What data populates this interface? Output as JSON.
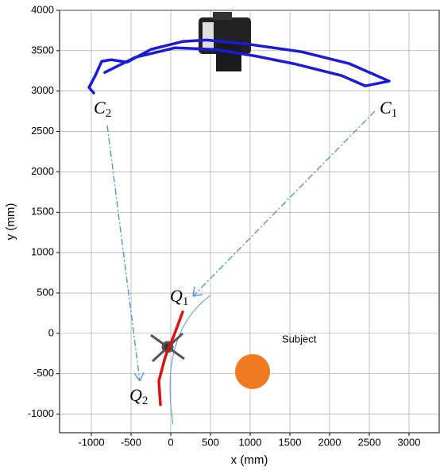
{
  "chart_data": {
    "type": "line",
    "xlabel": "x (mm)",
    "ylabel": "y (mm)",
    "xlim": [
      -1400,
      3380
    ],
    "ylim": [
      -1230,
      4000
    ],
    "xticks": [
      -1000,
      -500,
      0,
      500,
      1000,
      1500,
      2000,
      2500,
      3000
    ],
    "yticks": [
      -1000,
      -500,
      0,
      500,
      1000,
      1500,
      2000,
      2500,
      3000,
      3500,
      4000
    ],
    "grid": true,
    "series": [
      {
        "color": "#1a1adc",
        "x": [
          -970,
          -1030,
          -950,
          -870,
          -750,
          -550,
          -250,
          150,
          450,
          950,
          1650,
          2250,
          2750,
          2450,
          2150,
          1550,
          1050,
          550,
          50,
          -450,
          -830
        ],
        "values": [
          2976,
          3044,
          3192,
          3368,
          3388,
          3358,
          3516,
          3614,
          3633,
          3584,
          3486,
          3339,
          3123,
          3064,
          3192,
          3339,
          3437,
          3516,
          3535,
          3417,
          3231
        ]
      },
      {
        "color": "#e01010",
        "x": [
          150,
          50,
          -70,
          -150,
          -130
        ],
        "values": [
          265,
          0,
          -295,
          -589,
          -884
        ]
      }
    ],
    "annotations": [
      {
        "text": "C",
        "sub": "1"
      },
      {
        "text": "C",
        "sub": "2"
      },
      {
        "text": "Q",
        "sub": "1"
      },
      {
        "text": "Q",
        "sub": "2"
      },
      {
        "text": "Subject"
      }
    ]
  }
}
